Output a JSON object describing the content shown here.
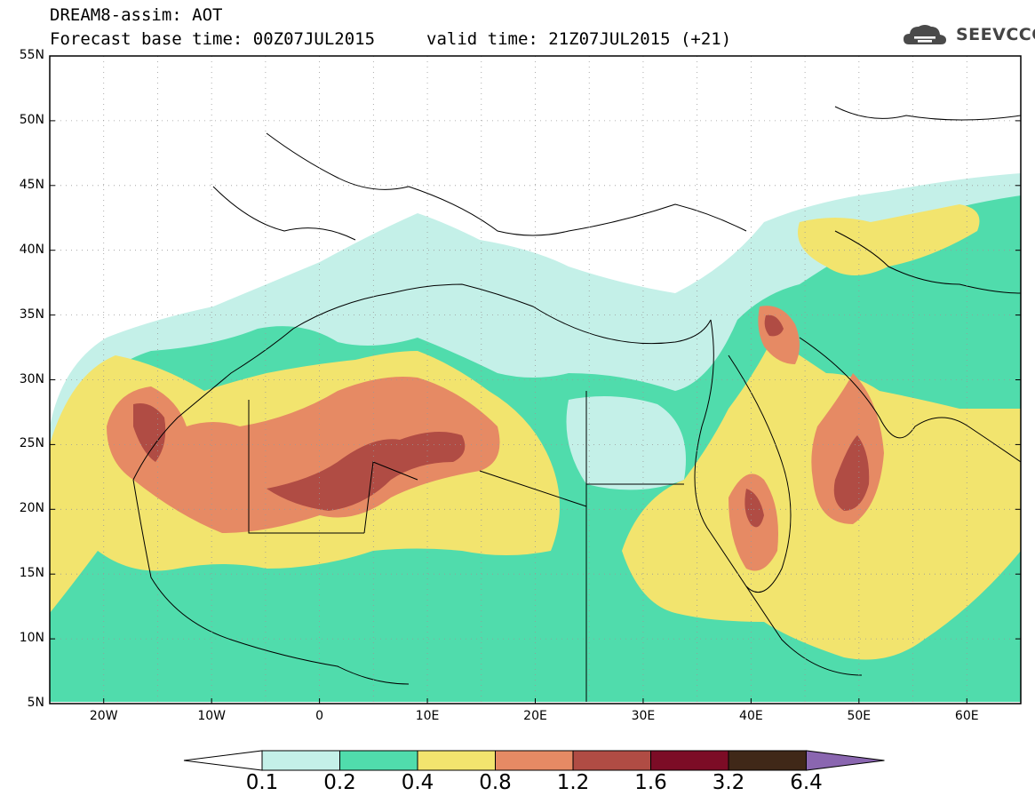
{
  "header": {
    "title": "DREAM8-assim: AOT",
    "base_time": "Forecast base time: 00Z07JUL2015",
    "valid_time": "valid time: 21Z07JUL2015 (+21)"
  },
  "logo": {
    "text": "SEEVCCC",
    "icon": "cloud-icon"
  },
  "map": {
    "lat_labels": [
      "55N",
      "50N",
      "45N",
      "40N",
      "35N",
      "30N",
      "25N",
      "20N",
      "15N",
      "10N",
      "5N"
    ],
    "lon_labels": [
      "20W",
      "10W",
      "0",
      "10E",
      "20E",
      "30E",
      "40E",
      "50E",
      "60E"
    ],
    "lon_range": [
      -25,
      65
    ],
    "lat_range": [
      5,
      55
    ],
    "grid": true
  },
  "legend": {
    "levels": [
      "0.1",
      "0.2",
      "0.4",
      "0.8",
      "1.2",
      "1.6",
      "3.2",
      "6.4"
    ],
    "colors": [
      "#ffffff",
      "#c4f0e8",
      "#50dcac",
      "#f2e46e",
      "#e68a64",
      "#b04c44",
      "#7c0c26",
      "#402818",
      "#8a66b0"
    ]
  }
}
